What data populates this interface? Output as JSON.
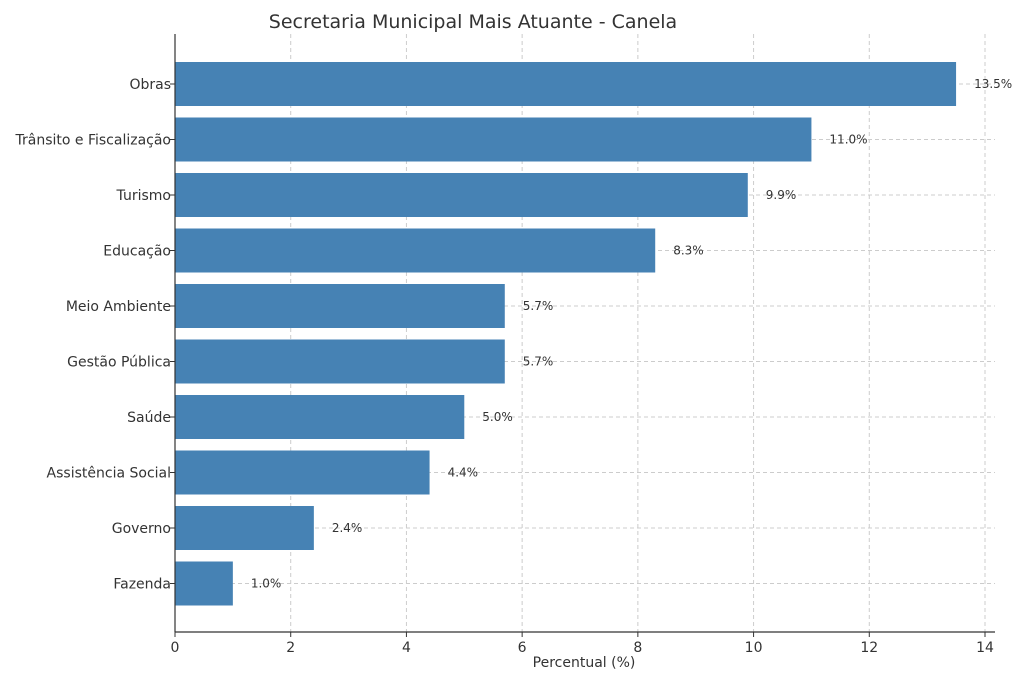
{
  "chart_data": {
    "type": "bar",
    "orientation": "horizontal",
    "title": "Secretaria Municipal Mais Atuante - Canela",
    "xlabel": "Percentual (%)",
    "ylabel": "",
    "xlim": [
      0,
      14
    ],
    "xticks": [
      0,
      2,
      4,
      6,
      8,
      10,
      12,
      14
    ],
    "grid": true,
    "bar_color": "#4682B4",
    "categories": [
      "Obras",
      "Trânsito e Fiscalização",
      "Turismo",
      "Educação",
      "Meio Ambiente",
      "Gestão Pública",
      "Saúde",
      "Assistência Social",
      "Governo",
      "Fazenda"
    ],
    "values": [
      13.5,
      11.0,
      9.9,
      8.3,
      5.7,
      5.7,
      5.0,
      4.4,
      2.4,
      1.0
    ],
    "data_labels": [
      "13.5%",
      "11.0%",
      "9.9%",
      "8.3%",
      "5.7%",
      "5.7%",
      "5.0%",
      "4.4%",
      "2.4%",
      "1.0%"
    ]
  }
}
